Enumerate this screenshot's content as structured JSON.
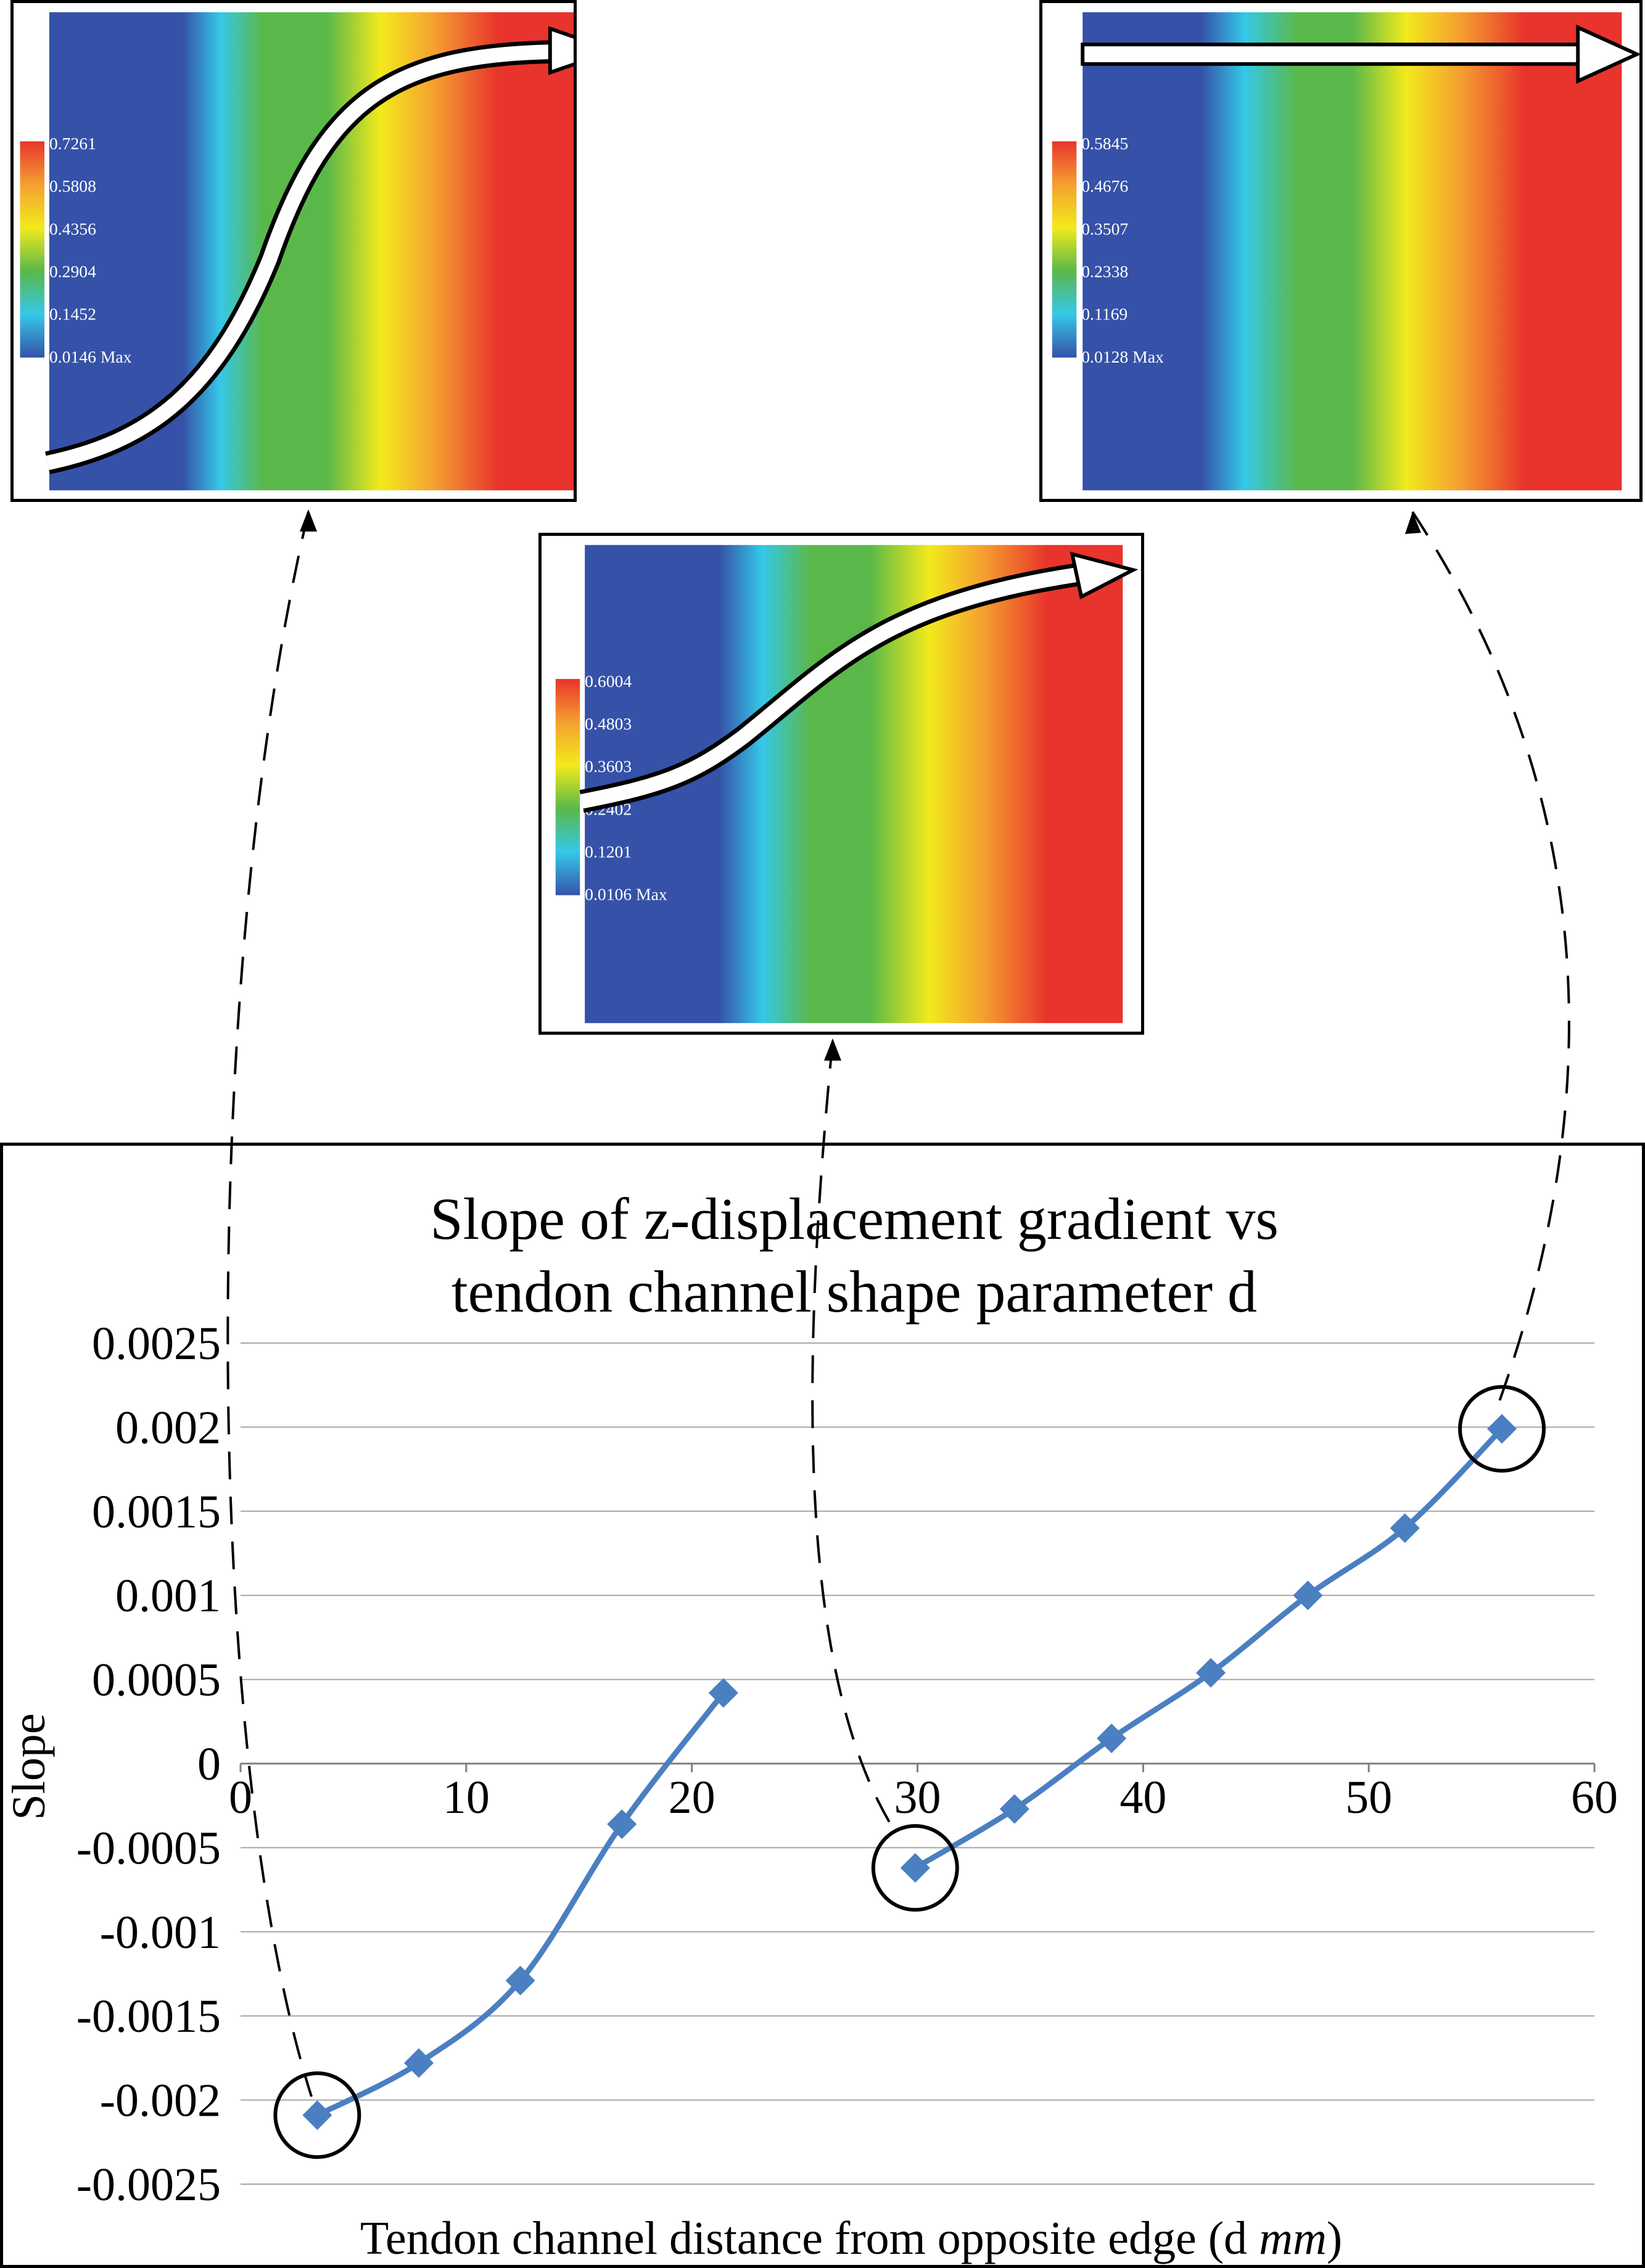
{
  "panels": [
    {
      "id": "left",
      "legend": [
        "0.7261",
        "0.5808",
        "0.4356",
        "0.2904",
        "0.1452",
        "0.0146 Max"
      ]
    },
    {
      "id": "center",
      "legend": [
        "0.6004",
        "0.4803",
        "0.3603",
        "0.2402",
        "0.1201",
        "0.0106 Max"
      ]
    },
    {
      "id": "right",
      "legend": [
        "0.5845",
        "0.4676",
        "0.3507",
        "0.2338",
        "0.1169",
        "0.0128 Max"
      ]
    }
  ],
  "colors": {
    "series": "#4a7fc1",
    "grid": "#a6a6a6",
    "contour_blue": "#3552a8",
    "contour_cyan": "#35c8e8",
    "contour_green": "#5ab84a",
    "contour_yellow": "#f2ea1c",
    "contour_orange": "#f5a030",
    "contour_red": "#e8342c"
  },
  "chart_data": {
    "type": "line",
    "title_line1": "Slope of z-displacement gradient vs",
    "title_line2": "tendon channel shape parameter d",
    "xlabel_prefix": "Tendon channel distance from opposite edge (d ",
    "xlabel_unit": "mm",
    "xlabel_suffix": ")",
    "ylabel": "Slope",
    "xlim": [
      0,
      60
    ],
    "ylim": [
      -0.0025,
      0.0025
    ],
    "xticks": [
      "0",
      "10",
      "20",
      "30",
      "40",
      "50",
      "60"
    ],
    "yticks": [
      "0.0025",
      "0.002",
      "0.0015",
      "0.001",
      "0.0005",
      "0",
      "-0.0005",
      "-0.001",
      "-0.0015",
      "-0.002",
      "-0.0025"
    ],
    "grid": true,
    "legend": "none",
    "series": [
      {
        "x": [
          3.4,
          7.9,
          12.4,
          16.9,
          21.4
        ],
        "y": [
          -0.00209,
          -0.00178,
          -0.00129,
          -0.00036,
          0.00042
        ]
      },
      {
        "x": [
          29.9,
          34.3,
          38.6,
          43.0,
          47.3,
          51.6,
          55.9
        ],
        "y": [
          -0.00062,
          -0.00027,
          0.00015,
          0.00054,
          0.001,
          0.0014,
          0.00199
        ]
      }
    ],
    "highlighted_points": [
      {
        "x": 3.4,
        "y": -0.00209
      },
      {
        "x": 29.9,
        "y": -0.00062
      },
      {
        "x": 55.9,
        "y": 0.00199
      }
    ]
  }
}
